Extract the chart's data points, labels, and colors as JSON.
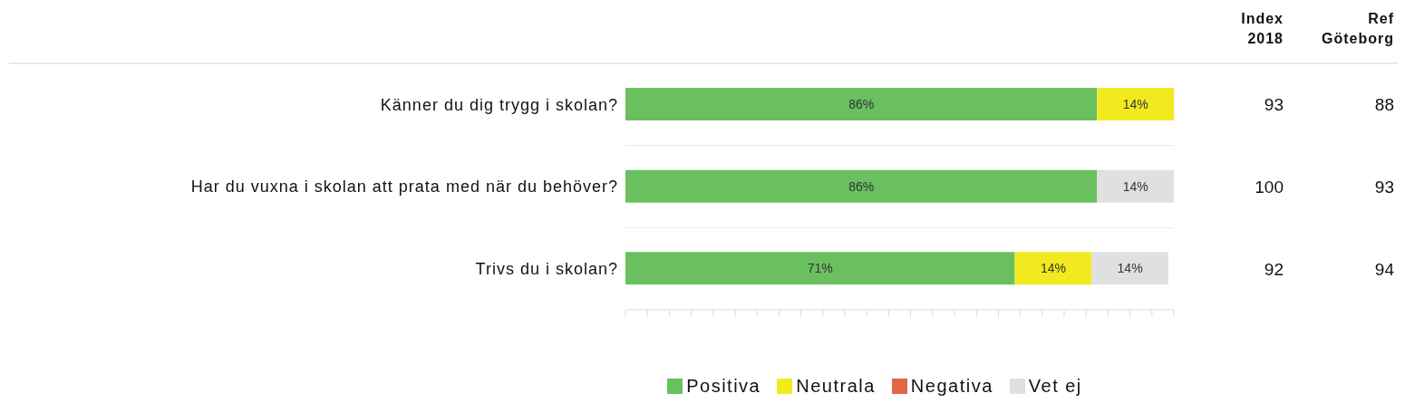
{
  "chart_data": {
    "type": "bar",
    "orientation": "horizontal",
    "stacked": true,
    "categories": [
      "Känner du dig trygg i skolan?",
      "Har du vuxna i skolan att prata med när du behöver?",
      "Trivs du i skolan?"
    ],
    "series": [
      {
        "name": "Positiva",
        "color": "#6abf5f",
        "values": [
          86,
          86,
          71
        ],
        "value_labels": [
          "86%",
          "86%",
          "71%"
        ]
      },
      {
        "name": "Neutrala",
        "color": "#f2ea1e",
        "values": [
          14,
          null,
          14
        ],
        "value_labels": [
          "14%",
          null,
          "14%"
        ]
      },
      {
        "name": "Negativa",
        "color": "#e06646",
        "values": [
          null,
          null,
          null
        ],
        "value_labels": [
          null,
          null,
          null
        ]
      },
      {
        "name": "Vet ej",
        "color": "#e0e0e0",
        "values": [
          null,
          14,
          14
        ],
        "value_labels": [
          null,
          "14%",
          "14%"
        ]
      }
    ],
    "xlim": [
      0,
      100
    ],
    "tick_labels": "y",
    "legend": "bottom",
    "annotations": [
      "Index 2018",
      "Ref Göteborg",
      "93",
      "88",
      "100",
      "93",
      "92",
      "94"
    ]
  }
}
